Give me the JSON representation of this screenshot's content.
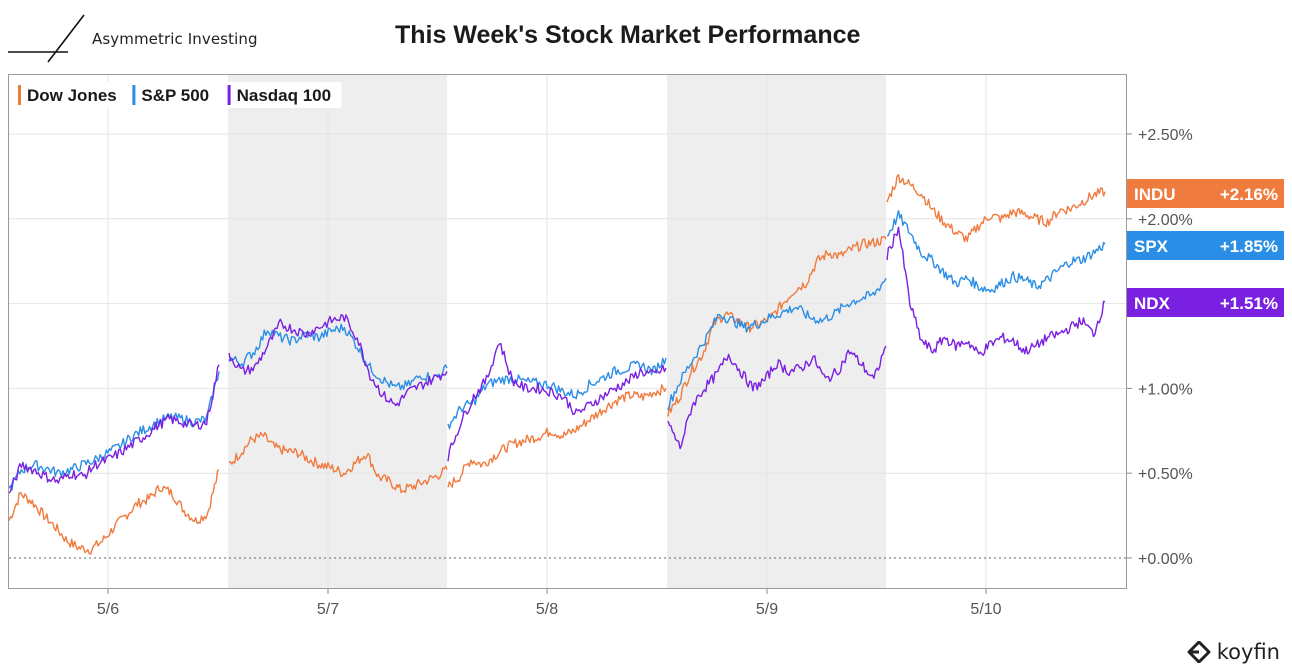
{
  "header": {
    "brand": "Asymmetric Investing",
    "title": "This Week's Stock Market Performance"
  },
  "footer": {
    "brand": "koyfin"
  },
  "colors": {
    "dow": "#f07b3f",
    "sp500": "#2b8ee6",
    "nasdaq": "#7a20e0",
    "shade": "#eeeeee",
    "grid": "#e4e4e4"
  },
  "chart_data": {
    "type": "line",
    "title": "This Week's Stock Market Performance",
    "xlabel": "",
    "ylabel": "",
    "x_ticks": [
      "5/6",
      "5/7",
      "5/8",
      "5/9",
      "5/10"
    ],
    "y_ticks": [
      "+0.00%",
      "+0.50%",
      "+1.00%",
      "+1.50%",
      "+2.00%",
      "+2.50%"
    ],
    "ylim": [
      -0.1,
      2.75
    ],
    "grid": true,
    "legend_position": "top-left",
    "shaded_days": [
      "5/7",
      "5/9"
    ],
    "series": [
      {
        "name": "Dow Jones",
        "ticker": "INDU",
        "end_label": "+2.16%",
        "color": "#f07b3f",
        "values": [
          [
            0.22,
            0.38,
            0.33,
            0.25,
            0.18,
            0.1,
            0.06,
            0.05,
            0.1,
            0.18,
            0.25,
            0.32,
            0.35,
            0.42,
            0.38,
            0.28,
            0.22,
            0.26,
            0.52
          ],
          [
            0.55,
            0.62,
            0.7,
            0.72,
            0.65,
            0.63,
            0.62,
            0.58,
            0.55,
            0.53,
            0.5,
            0.56,
            0.62,
            0.48,
            0.45,
            0.4,
            0.42,
            0.45,
            0.48,
            0.52
          ],
          [
            0.42,
            0.48,
            0.58,
            0.55,
            0.6,
            0.65,
            0.68,
            0.7,
            0.72,
            0.75,
            0.72,
            0.75,
            0.8,
            0.85,
            0.9,
            0.94,
            0.96,
            0.95,
            0.98,
            1.0
          ],
          [
            0.85,
            0.95,
            1.1,
            1.2,
            1.38,
            1.44,
            1.4,
            1.36,
            1.38,
            1.42,
            1.5,
            1.58,
            1.62,
            1.75,
            1.8,
            1.78,
            1.82,
            1.85,
            1.86,
            1.88
          ],
          [
            2.1,
            2.25,
            2.2,
            2.15,
            2.05,
            1.98,
            1.92,
            1.88,
            1.96,
            2.02,
            2.0,
            2.04,
            2.03,
            2.0,
            1.98,
            2.05,
            2.06,
            2.1,
            2.14,
            2.16
          ]
        ]
      },
      {
        "name": "S&P 500",
        "ticker": "SPX",
        "end_label": "+1.85%",
        "color": "#2b8ee6",
        "values": [
          [
            0.4,
            0.52,
            0.55,
            0.53,
            0.5,
            0.52,
            0.55,
            0.58,
            0.62,
            0.66,
            0.72,
            0.76,
            0.8,
            0.83,
            0.82,
            0.8,
            0.82,
            1.1
          ],
          [
            1.18,
            1.15,
            1.22,
            1.35,
            1.3,
            1.28,
            1.32,
            1.3,
            1.34,
            1.36,
            1.25,
            1.12,
            1.05,
            1.0,
            1.02,
            1.08,
            1.06,
            1.12
          ],
          [
            0.78,
            0.88,
            0.92,
            1.02,
            1.05,
            1.06,
            1.04,
            1.03,
            1.02,
            0.98,
            0.96,
            1.02,
            1.06,
            1.1,
            1.12,
            1.14,
            1.1,
            1.18
          ],
          [
            0.9,
            1.05,
            1.18,
            1.3,
            1.44,
            1.4,
            1.36,
            1.38,
            1.42,
            1.45,
            1.48,
            1.42,
            1.4,
            1.44,
            1.5,
            1.53,
            1.55,
            1.65
          ],
          [
            1.9,
            2.02,
            1.92,
            1.8,
            1.75,
            1.68,
            1.62,
            1.65,
            1.6,
            1.58,
            1.62,
            1.66,
            1.64,
            1.6,
            1.64,
            1.7,
            1.75,
            1.76,
            1.8,
            1.85
          ]
        ]
      },
      {
        "name": "Nasdaq 100",
        "ticker": "NDX",
        "end_label": "+1.51%",
        "color": "#7a20e0",
        "values": [
          [
            0.38,
            0.55,
            0.52,
            0.48,
            0.45,
            0.5,
            0.48,
            0.55,
            0.58,
            0.62,
            0.67,
            0.72,
            0.78,
            0.82,
            0.8,
            0.78,
            0.8,
            1.14
          ],
          [
            1.2,
            1.1,
            1.12,
            1.25,
            1.38,
            1.35,
            1.32,
            1.36,
            1.4,
            1.42,
            1.3,
            1.08,
            0.96,
            0.9,
            0.98,
            1.02,
            1.06,
            1.1
          ],
          [
            0.6,
            0.8,
            0.95,
            1.05,
            1.28,
            1.05,
            1.0,
            1.0,
            0.98,
            0.95,
            0.85,
            0.9,
            0.95,
            1.0,
            1.04,
            1.1,
            1.08,
            1.12
          ],
          [
            0.8,
            0.65,
            0.9,
            1.0,
            1.08,
            1.2,
            1.1,
            1.0,
            1.05,
            1.15,
            1.1,
            1.12,
            1.18,
            1.05,
            1.1,
            1.22,
            1.14,
            1.05,
            1.25
          ],
          [
            1.78,
            1.95,
            1.5,
            1.28,
            1.22,
            1.3,
            1.25,
            1.28,
            1.2,
            1.26,
            1.3,
            1.28,
            1.22,
            1.25,
            1.3,
            1.32,
            1.36,
            1.4,
            1.32,
            1.51
          ]
        ]
      }
    ]
  }
}
